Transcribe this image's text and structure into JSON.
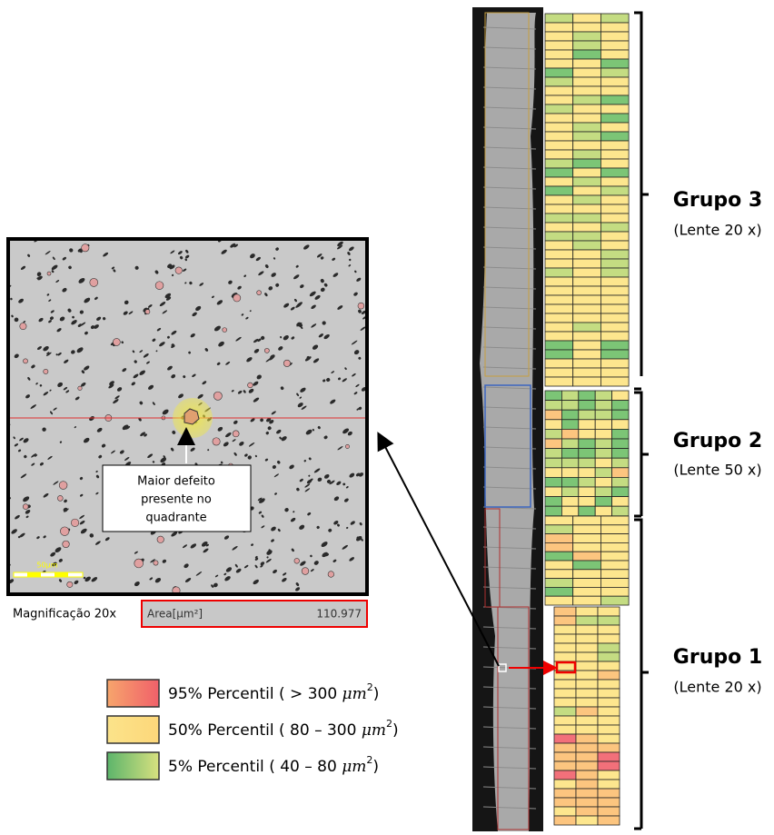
{
  "micrograph": {
    "annotation": [
      "Maior defeito",
      "presente no",
      "quadrante"
    ],
    "scale_bar": "50μm"
  },
  "measurement": {
    "magnification": "Magnificação 20x",
    "field": "Area[μm²]",
    "value": 110.977
  },
  "legend": [
    {
      "label_start": "95% Percentil ( > 300 ",
      "unit": "μm",
      "power": "2",
      "label_end": ")"
    },
    {
      "label_start": "50% Percentil ( 80 – 300 ",
      "unit": "μm",
      "power": "2",
      "label_end": ")"
    },
    {
      "label_start": "5% Percentil ( 40 – 80 ",
      "unit": "μm",
      "power": "2",
      "label_end": ")"
    }
  ],
  "groups": [
    {
      "name": "Grupo 3",
      "lens": "(Lente 20 x)"
    },
    {
      "name": "Grupo 2",
      "lens": "(Lente 50 x)"
    },
    {
      "name": "Grupo 1",
      "lens": "(Lente 20 x)"
    }
  ]
}
